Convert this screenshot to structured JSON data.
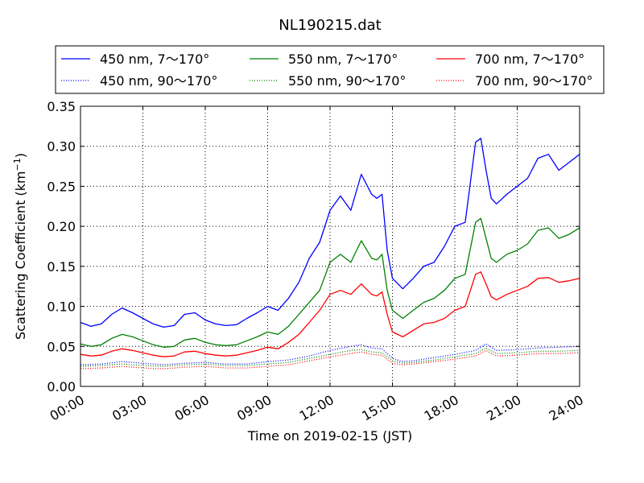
{
  "chart_data": {
    "type": "line",
    "title": "NL190215.dat",
    "xlabel": "Time on 2019-02-15 (JST)",
    "ylabel_main": "Scattering Coefficient (km",
    "ylabel_sup": "−1",
    "ylabel_close": ")",
    "xlim": [
      0,
      24
    ],
    "ylim": [
      0,
      0.35
    ],
    "x_unit": "hours",
    "xticks": [
      0,
      3,
      6,
      9,
      12,
      15,
      18,
      21,
      24
    ],
    "xtick_labels": [
      "00:00",
      "03:00",
      "06:00",
      "09:00",
      "12:00",
      "15:00",
      "18:00",
      "21:00",
      "24:00"
    ],
    "yticks": [
      0,
      0.05,
      0.1,
      0.15,
      0.2,
      0.25,
      0.3,
      0.35
    ],
    "ytick_labels": [
      "0.00",
      "0.05",
      "0.10",
      "0.15",
      "0.20",
      "0.25",
      "0.30",
      "0.35"
    ],
    "grid": true,
    "legend_position": "top, above plot",
    "series": [
      {
        "name": "450 nm, 7～170°",
        "color": "#0000ff",
        "style": "solid",
        "x": [
          0,
          0.5,
          1,
          1.5,
          2,
          2.5,
          3,
          3.5,
          4,
          4.5,
          5,
          5.5,
          6,
          6.5,
          7,
          7.5,
          8,
          8.5,
          9,
          9.5,
          10,
          10.5,
          11,
          11.5,
          12,
          12.5,
          13,
          13.5,
          14,
          14.25,
          14.5,
          14.75,
          15,
          15.5,
          16,
          16.5,
          17,
          17.5,
          18,
          18.5,
          19,
          19.25,
          19.5,
          19.75,
          20,
          20.5,
          21,
          21.5,
          22,
          22.5,
          23,
          23.5,
          24
        ],
        "y": [
          0.08,
          0.075,
          0.078,
          0.09,
          0.098,
          0.092,
          0.085,
          0.078,
          0.074,
          0.076,
          0.09,
          0.092,
          0.083,
          0.078,
          0.076,
          0.077,
          0.085,
          0.092,
          0.1,
          0.095,
          0.11,
          0.13,
          0.16,
          0.18,
          0.22,
          0.238,
          0.22,
          0.265,
          0.24,
          0.235,
          0.24,
          0.17,
          0.135,
          0.122,
          0.135,
          0.15,
          0.155,
          0.175,
          0.2,
          0.205,
          0.305,
          0.31,
          0.27,
          0.235,
          0.228,
          0.24,
          0.25,
          0.26,
          0.285,
          0.29,
          0.27,
          0.28,
          0.29
        ]
      },
      {
        "name": "550 nm, 7～170°",
        "color": "#008000",
        "style": "solid",
        "x": [
          0,
          0.5,
          1,
          1.5,
          2,
          2.5,
          3,
          3.5,
          4,
          4.5,
          5,
          5.5,
          6,
          6.5,
          7,
          7.5,
          8,
          8.5,
          9,
          9.5,
          10,
          10.5,
          11,
          11.5,
          12,
          12.5,
          13,
          13.5,
          14,
          14.25,
          14.5,
          14.75,
          15,
          15.5,
          16,
          16.5,
          17,
          17.5,
          18,
          18.5,
          19,
          19.25,
          19.5,
          19.75,
          20,
          20.5,
          21,
          21.5,
          22,
          22.5,
          23,
          23.5,
          24
        ],
        "y": [
          0.053,
          0.05,
          0.052,
          0.06,
          0.065,
          0.062,
          0.057,
          0.052,
          0.049,
          0.05,
          0.058,
          0.06,
          0.055,
          0.052,
          0.051,
          0.052,
          0.057,
          0.062,
          0.068,
          0.065,
          0.075,
          0.09,
          0.105,
          0.12,
          0.155,
          0.165,
          0.155,
          0.182,
          0.16,
          0.158,
          0.165,
          0.12,
          0.095,
          0.085,
          0.095,
          0.105,
          0.11,
          0.12,
          0.135,
          0.14,
          0.205,
          0.21,
          0.185,
          0.16,
          0.155,
          0.165,
          0.17,
          0.178,
          0.195,
          0.198,
          0.185,
          0.19,
          0.198
        ]
      },
      {
        "name": "700 nm, 7～170°",
        "color": "#ff0000",
        "style": "solid",
        "x": [
          0,
          0.5,
          1,
          1.5,
          2,
          2.5,
          3,
          3.5,
          4,
          4.5,
          5,
          5.5,
          6,
          6.5,
          7,
          7.5,
          8,
          8.5,
          9,
          9.5,
          10,
          10.5,
          11,
          11.5,
          12,
          12.5,
          13,
          13.5,
          14,
          14.25,
          14.5,
          14.75,
          15,
          15.5,
          16,
          16.5,
          17,
          17.5,
          18,
          18.5,
          19,
          19.25,
          19.5,
          19.75,
          20,
          20.5,
          21,
          21.5,
          22,
          22.5,
          23,
          23.5,
          24
        ],
        "y": [
          0.04,
          0.038,
          0.039,
          0.044,
          0.047,
          0.045,
          0.042,
          0.039,
          0.037,
          0.038,
          0.043,
          0.044,
          0.041,
          0.039,
          0.038,
          0.039,
          0.042,
          0.045,
          0.049,
          0.047,
          0.055,
          0.065,
          0.08,
          0.095,
          0.115,
          0.12,
          0.115,
          0.128,
          0.115,
          0.113,
          0.118,
          0.09,
          0.068,
          0.062,
          0.07,
          0.078,
          0.08,
          0.085,
          0.095,
          0.1,
          0.14,
          0.143,
          0.128,
          0.112,
          0.108,
          0.115,
          0.12,
          0.125,
          0.135,
          0.136,
          0.13,
          0.132,
          0.135
        ]
      },
      {
        "name": "450 nm, 90～170°",
        "color": "#0000ff",
        "style": "dotted",
        "x": [
          0,
          1,
          2,
          3,
          4,
          5,
          6,
          7,
          8,
          9,
          10,
          11,
          12,
          13,
          13.5,
          14,
          14.5,
          15,
          15.5,
          16,
          17,
          18,
          19,
          19.5,
          20,
          21,
          22,
          23,
          24
        ],
        "y": [
          0.027,
          0.028,
          0.031,
          0.029,
          0.027,
          0.029,
          0.03,
          0.028,
          0.028,
          0.031,
          0.033,
          0.038,
          0.045,
          0.05,
          0.052,
          0.048,
          0.047,
          0.035,
          0.031,
          0.032,
          0.036,
          0.04,
          0.045,
          0.053,
          0.045,
          0.046,
          0.048,
          0.049,
          0.05
        ]
      },
      {
        "name": "550 nm, 90～170°",
        "color": "#008000",
        "style": "dotted",
        "x": [
          0,
          1,
          2,
          3,
          4,
          5,
          6,
          7,
          8,
          9,
          10,
          11,
          12,
          13,
          13.5,
          14,
          14.5,
          15,
          15.5,
          16,
          17,
          18,
          19,
          19.5,
          20,
          21,
          22,
          23,
          24
        ],
        "y": [
          0.025,
          0.026,
          0.028,
          0.026,
          0.025,
          0.027,
          0.028,
          0.026,
          0.026,
          0.028,
          0.03,
          0.035,
          0.04,
          0.045,
          0.046,
          0.043,
          0.042,
          0.032,
          0.029,
          0.03,
          0.033,
          0.037,
          0.041,
          0.048,
          0.041,
          0.042,
          0.044,
          0.044,
          0.045
        ]
      },
      {
        "name": "700 nm, 90～170°",
        "color": "#ff0000",
        "style": "dotted",
        "x": [
          0,
          1,
          2,
          3,
          4,
          5,
          6,
          7,
          8,
          9,
          10,
          11,
          12,
          13,
          13.5,
          14,
          14.5,
          15,
          15.5,
          16,
          17,
          18,
          19,
          19.5,
          20,
          21,
          22,
          23,
          24
        ],
        "y": [
          0.022,
          0.023,
          0.025,
          0.023,
          0.022,
          0.024,
          0.025,
          0.023,
          0.023,
          0.025,
          0.027,
          0.032,
          0.037,
          0.041,
          0.043,
          0.04,
          0.039,
          0.029,
          0.027,
          0.028,
          0.031,
          0.034,
          0.038,
          0.045,
          0.038,
          0.039,
          0.041,
          0.041,
          0.042
        ]
      }
    ]
  }
}
